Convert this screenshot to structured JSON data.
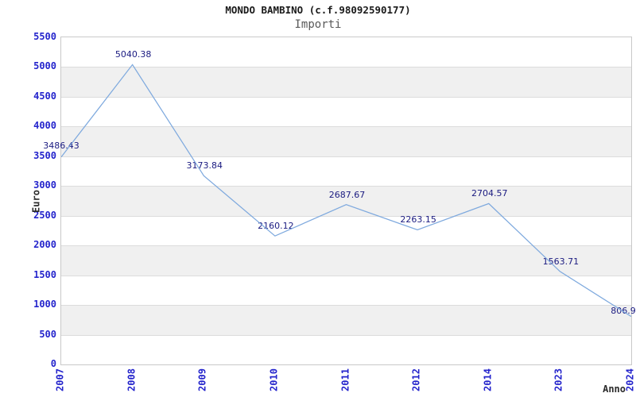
{
  "header": {
    "title": "MONDO BAMBINO (c.f.98092590177)",
    "subtitle": "Importi"
  },
  "chart_data": {
    "type": "line",
    "title": "MONDO BAMBINO (c.f.98092590177)",
    "subtitle": "Importi",
    "xlabel": "Anno",
    "ylabel": "Euro",
    "x": [
      "2007",
      "2008",
      "2009",
      "2010",
      "2011",
      "2012",
      "2014",
      "2023",
      "2024"
    ],
    "series": [
      {
        "name": "Importi",
        "values": [
          3486.43,
          5040.38,
          3173.84,
          2160.12,
          2687.67,
          2263.15,
          2704.57,
          1563.71,
          806.9
        ]
      }
    ],
    "point_labels": [
      "3486.43",
      "5040.38",
      "3173.84",
      "2160.12",
      "2687.67",
      "2263.15",
      "2704.57",
      "1563.71",
      "806.9"
    ],
    "ylim": [
      0,
      5500
    ],
    "ytick_step": 500,
    "yticks": [
      "0",
      "500",
      "1000",
      "1500",
      "2000",
      "2500",
      "3000",
      "3500",
      "4000",
      "4500",
      "5000",
      "5500"
    ],
    "grid": "horizontal-bands",
    "legend": "none",
    "colors": {
      "line": "#7ea9de",
      "tick_label": "#2424cc",
      "data_label": "#1a1a80",
      "band_gray": "#f0f0f0",
      "gridline": "#dcdcdc",
      "plot_border": "#c9c9c9",
      "title": "#1a1a1a",
      "subtitle": "#595959",
      "axis_title": "#2b2b2b",
      "background": "#ffffff"
    }
  }
}
